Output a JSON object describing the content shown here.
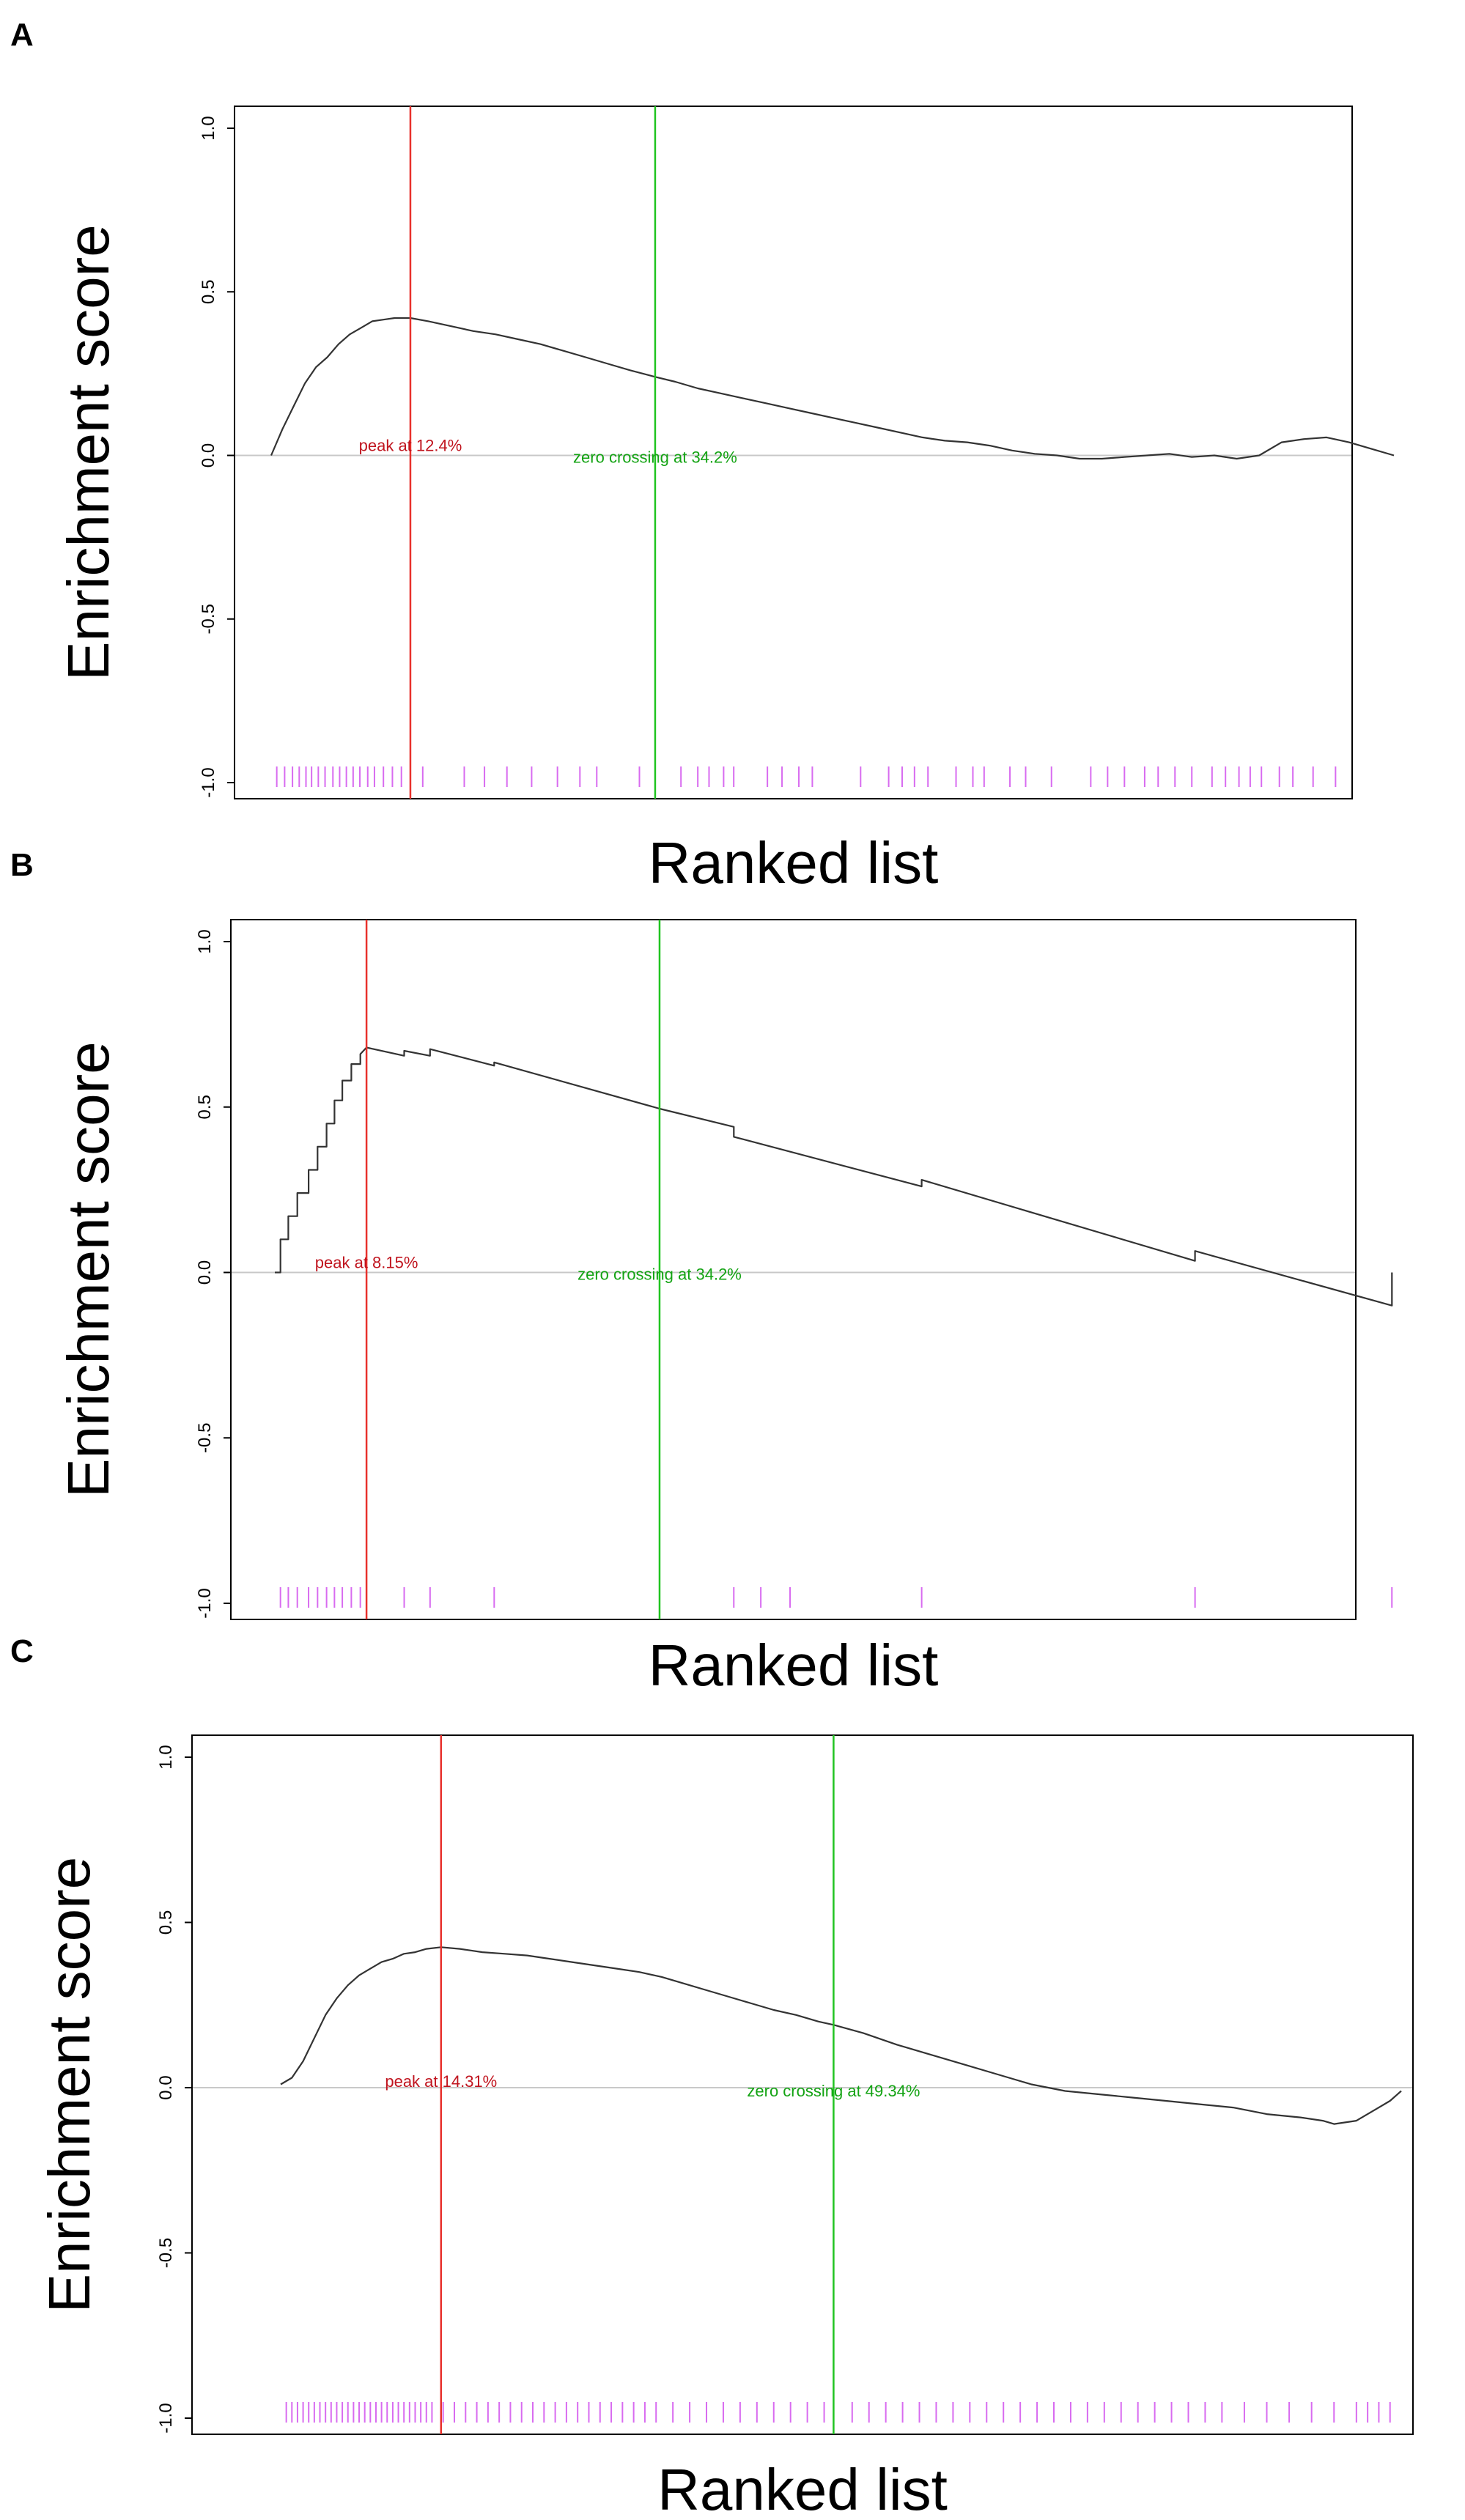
{
  "figure": {
    "panels": [
      "A",
      "B",
      "C"
    ]
  },
  "colors": {
    "curve": "#333333",
    "peak_line": "#e8312c",
    "zero_line": "#21c421",
    "peak_text": "#c0141e",
    "zero_text": "#13a313",
    "baseline": "#c8c8c8",
    "hits": "#d86bf0"
  },
  "chart_data": [
    {
      "type": "line",
      "panel": "A",
      "title": "",
      "xlabel": "Ranked list",
      "ylabel": "Enrichment score",
      "ylim": [
        -1.0,
        1.0
      ],
      "yticks": [
        -1.0,
        -0.5,
        0.0,
        0.5,
        1.0
      ],
      "ytick_labels": [
        "-1.0",
        "-0.5",
        "0.0",
        "0.5",
        "1.0"
      ],
      "xlim": [
        0,
        100
      ],
      "peak_position": 12.4,
      "peak_label": "peak at 12.4%",
      "zero_crossing": 34.2,
      "zero_crossing_label": "zero crossing at 34.2%",
      "curve": {
        "x": [
          0,
          1,
          2,
          3,
          4,
          5,
          6,
          7,
          8,
          9,
          10,
          11,
          12.4,
          14,
          16,
          18,
          20,
          22,
          24,
          26,
          28,
          30,
          32,
          34.2,
          36,
          38,
          40,
          42,
          44,
          46,
          48,
          50,
          52,
          54,
          56,
          58,
          60,
          62,
          64,
          66,
          68,
          70,
          72,
          74,
          76,
          78,
          80,
          82,
          84,
          86,
          88,
          90,
          92,
          94,
          96,
          98,
          100
        ],
        "y": [
          0.0,
          0.08,
          0.15,
          0.22,
          0.27,
          0.3,
          0.34,
          0.37,
          0.39,
          0.41,
          0.415,
          0.42,
          0.42,
          0.41,
          0.395,
          0.38,
          0.37,
          0.355,
          0.34,
          0.32,
          0.3,
          0.28,
          0.26,
          0.24,
          0.225,
          0.205,
          0.19,
          0.175,
          0.16,
          0.145,
          0.13,
          0.115,
          0.1,
          0.085,
          0.07,
          0.055,
          0.045,
          0.04,
          0.03,
          0.015,
          0.005,
          0.0,
          -0.01,
          -0.01,
          -0.005,
          0.0,
          0.005,
          -0.005,
          0.0,
          -0.01,
          0.0,
          0.04,
          0.05,
          0.055,
          0.04,
          0.02,
          0.0
        ]
      },
      "hits": [
        0.5,
        1.2,
        1.9,
        2.5,
        3.1,
        3.6,
        4.2,
        4.8,
        5.5,
        6.1,
        6.7,
        7.3,
        7.9,
        8.6,
        9.2,
        10.0,
        10.8,
        11.6,
        13.5,
        17.2,
        19.0,
        21.0,
        23.2,
        25.5,
        27.5,
        29.0,
        32.8,
        36.5,
        38.0,
        39.0,
        40.3,
        41.2,
        44.2,
        45.5,
        47.0,
        48.2,
        52.5,
        55.0,
        56.2,
        57.3,
        58.5,
        61.0,
        62.5,
        63.5,
        65.8,
        67.2,
        69.5,
        73.0,
        74.5,
        76.0,
        77.8,
        79.0,
        80.5,
        82.0,
        83.8,
        85.0,
        86.2,
        87.2,
        88.2,
        89.8,
        91.0,
        92.8,
        94.8
      ]
    },
    {
      "type": "line",
      "panel": "B",
      "title": "",
      "xlabel": "Ranked list",
      "ylabel": "Enrichment score",
      "ylim": [
        -1.0,
        1.0
      ],
      "yticks": [
        -1.0,
        -0.5,
        0.0,
        0.5,
        1.0
      ],
      "ytick_labels": [
        "-1.0",
        "-0.5",
        "0.0",
        "0.5",
        "1.0"
      ],
      "xlim": [
        0,
        100
      ],
      "peak_position": 8.15,
      "peak_label": "peak at 8.15%",
      "zero_crossing": 34.2,
      "zero_crossing_label": "zero crossing at 34.2%",
      "curve": {
        "x": [
          0,
          0.5,
          0.5,
          1.2,
          1.2,
          2.0,
          2.0,
          3.0,
          3.0,
          3.8,
          3.8,
          4.6,
          4.6,
          5.3,
          5.3,
          6.0,
          6.0,
          6.8,
          6.8,
          7.6,
          7.6,
          8.15,
          11.5,
          11.5,
          13.8,
          13.8,
          19.5,
          19.5,
          34.2,
          40.8,
          40.8,
          57.5,
          57.5,
          81.8,
          81.8,
          99.3,
          99.3
        ],
        "y": [
          0.0,
          0.0,
          0.1,
          0.1,
          0.17,
          0.17,
          0.24,
          0.24,
          0.31,
          0.31,
          0.38,
          0.38,
          0.45,
          0.45,
          0.52,
          0.52,
          0.58,
          0.58,
          0.63,
          0.63,
          0.66,
          0.68,
          0.655,
          0.67,
          0.655,
          0.675,
          0.625,
          0.635,
          0.495,
          0.44,
          0.41,
          0.26,
          0.28,
          0.035,
          0.065,
          -0.1,
          0.0
        ]
      },
      "hits": [
        0.5,
        1.2,
        2.0,
        3.0,
        3.8,
        4.6,
        5.3,
        6.0,
        6.8,
        7.6,
        11.5,
        13.8,
        19.5,
        40.8,
        43.2,
        45.8,
        57.5,
        81.8,
        99.3
      ]
    },
    {
      "type": "line",
      "panel": "C",
      "title": "",
      "xlabel": "Ranked list",
      "ylabel": "Enrichment score",
      "ylim": [
        -1.0,
        1.0
      ],
      "yticks": [
        -1.0,
        -0.5,
        0.0,
        0.5,
        1.0
      ],
      "ytick_labels": [
        "-1.0",
        "-0.5",
        "0.0",
        "0.5",
        "1.0"
      ],
      "xlim": [
        0,
        100
      ],
      "peak_position": 14.31,
      "peak_label": "peak at 14.31%",
      "zero_crossing": 49.34,
      "zero_crossing_label": "zero crossing at 49.34%",
      "curve": {
        "x": [
          0,
          1,
          2,
          3,
          4,
          5,
          6,
          7,
          8,
          9,
          10,
          11,
          12,
          13,
          14.31,
          16,
          18,
          20,
          22,
          24,
          26,
          28,
          30,
          32,
          34,
          36,
          38,
          40,
          42,
          44,
          46,
          48,
          49.34,
          52,
          55,
          58,
          61,
          64,
          67,
          70,
          73,
          76,
          79,
          82,
          85,
          88,
          91,
          93,
          94,
          96,
          97,
          98,
          99,
          100
        ],
        "y": [
          0.01,
          0.03,
          0.08,
          0.15,
          0.22,
          0.27,
          0.31,
          0.34,
          0.36,
          0.38,
          0.39,
          0.405,
          0.41,
          0.42,
          0.425,
          0.42,
          0.41,
          0.405,
          0.4,
          0.39,
          0.38,
          0.37,
          0.36,
          0.35,
          0.335,
          0.315,
          0.295,
          0.275,
          0.255,
          0.235,
          0.22,
          0.2,
          0.19,
          0.165,
          0.13,
          0.1,
          0.07,
          0.04,
          0.01,
          -0.01,
          -0.02,
          -0.03,
          -0.04,
          -0.05,
          -0.06,
          -0.08,
          -0.09,
          -0.1,
          -0.11,
          -0.1,
          -0.08,
          -0.06,
          -0.04,
          -0.01
        ]
      },
      "hits": [
        0.5,
        1.0,
        1.5,
        2.0,
        2.5,
        3.0,
        3.5,
        4.0,
        4.5,
        5.0,
        5.5,
        6.0,
        6.5,
        7.0,
        7.5,
        8.0,
        8.5,
        9.0,
        9.5,
        10.0,
        10.5,
        11.0,
        11.5,
        12.0,
        12.5,
        13.0,
        13.5,
        14.5,
        15.5,
        16.5,
        17.5,
        18.5,
        19.5,
        20.5,
        21.5,
        22.5,
        23.5,
        24.5,
        25.5,
        26.5,
        27.5,
        28.5,
        29.5,
        30.5,
        31.5,
        32.5,
        33.5,
        35,
        36.5,
        38,
        39.5,
        41,
        42.5,
        44,
        45.5,
        47,
        48.5,
        51,
        52.5,
        54,
        55.5,
        57,
        58.5,
        60,
        61.5,
        63,
        64.5,
        66,
        67.5,
        69,
        70.5,
        72,
        73.5,
        75,
        76.5,
        78,
        79.5,
        81,
        82.5,
        84,
        86,
        88,
        90,
        92,
        94,
        96,
        97,
        98,
        99
      ]
    }
  ]
}
